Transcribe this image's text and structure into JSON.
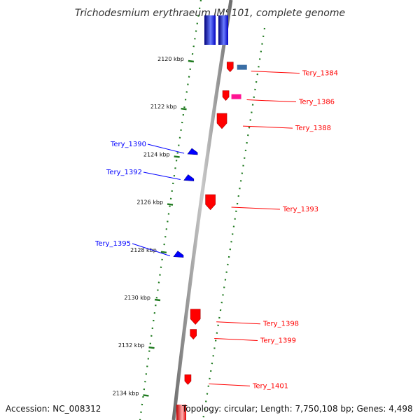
{
  "title": "Trichodesmium erythraeum IMS101, complete genome",
  "footer": {
    "accession": "Accession: NC_008312",
    "summary": "Topology: circular; Length: 7,750,108 bp; Genes: 4,498"
  },
  "colors": {
    "forward": "#ff0000",
    "reverse": "#0000ff",
    "tick": "#1f7a1f",
    "backbone": "#999999",
    "pseudo_blue": "#3a6ea5",
    "pseudo_pink": "#ff1493"
  },
  "scale": {
    "unit": "kbp",
    "ticks": [
      {
        "kbp": 2120,
        "label": "2120 kbp"
      },
      {
        "kbp": 2122,
        "label": "2122 kbp"
      },
      {
        "kbp": 2124,
        "label": "2124 kbp"
      },
      {
        "kbp": 2126,
        "label": "2126 kbp"
      },
      {
        "kbp": 2128,
        "label": "2128 kbp"
      },
      {
        "kbp": 2130,
        "label": "2130 kbp"
      },
      {
        "kbp": 2132,
        "label": "2132 kbp"
      },
      {
        "kbp": 2134,
        "label": "2134 kbp"
      }
    ]
  },
  "genes": [
    {
      "name": "Tery_1384",
      "strand": "+",
      "kbp": 2120.4
    },
    {
      "name": "Tery_1386",
      "strand": "+",
      "kbp": 2121.6
    },
    {
      "name": "Tery_1388",
      "strand": "+",
      "kbp": 2122.7
    },
    {
      "name": "Tery_1390",
      "strand": "-",
      "kbp": 2123.9
    },
    {
      "name": "Tery_1392",
      "strand": "-",
      "kbp": 2125.0
    },
    {
      "name": "Tery_1393",
      "strand": "+",
      "kbp": 2126.1
    },
    {
      "name": "Tery_1395",
      "strand": "-",
      "kbp": 2128.2
    },
    {
      "name": "Tery_1398",
      "strand": "+",
      "kbp": 2130.9
    },
    {
      "name": "Tery_1399",
      "strand": "+",
      "kbp": 2131.6
    },
    {
      "name": "Tery_1401",
      "strand": "+",
      "kbp": 2133.5
    }
  ]
}
